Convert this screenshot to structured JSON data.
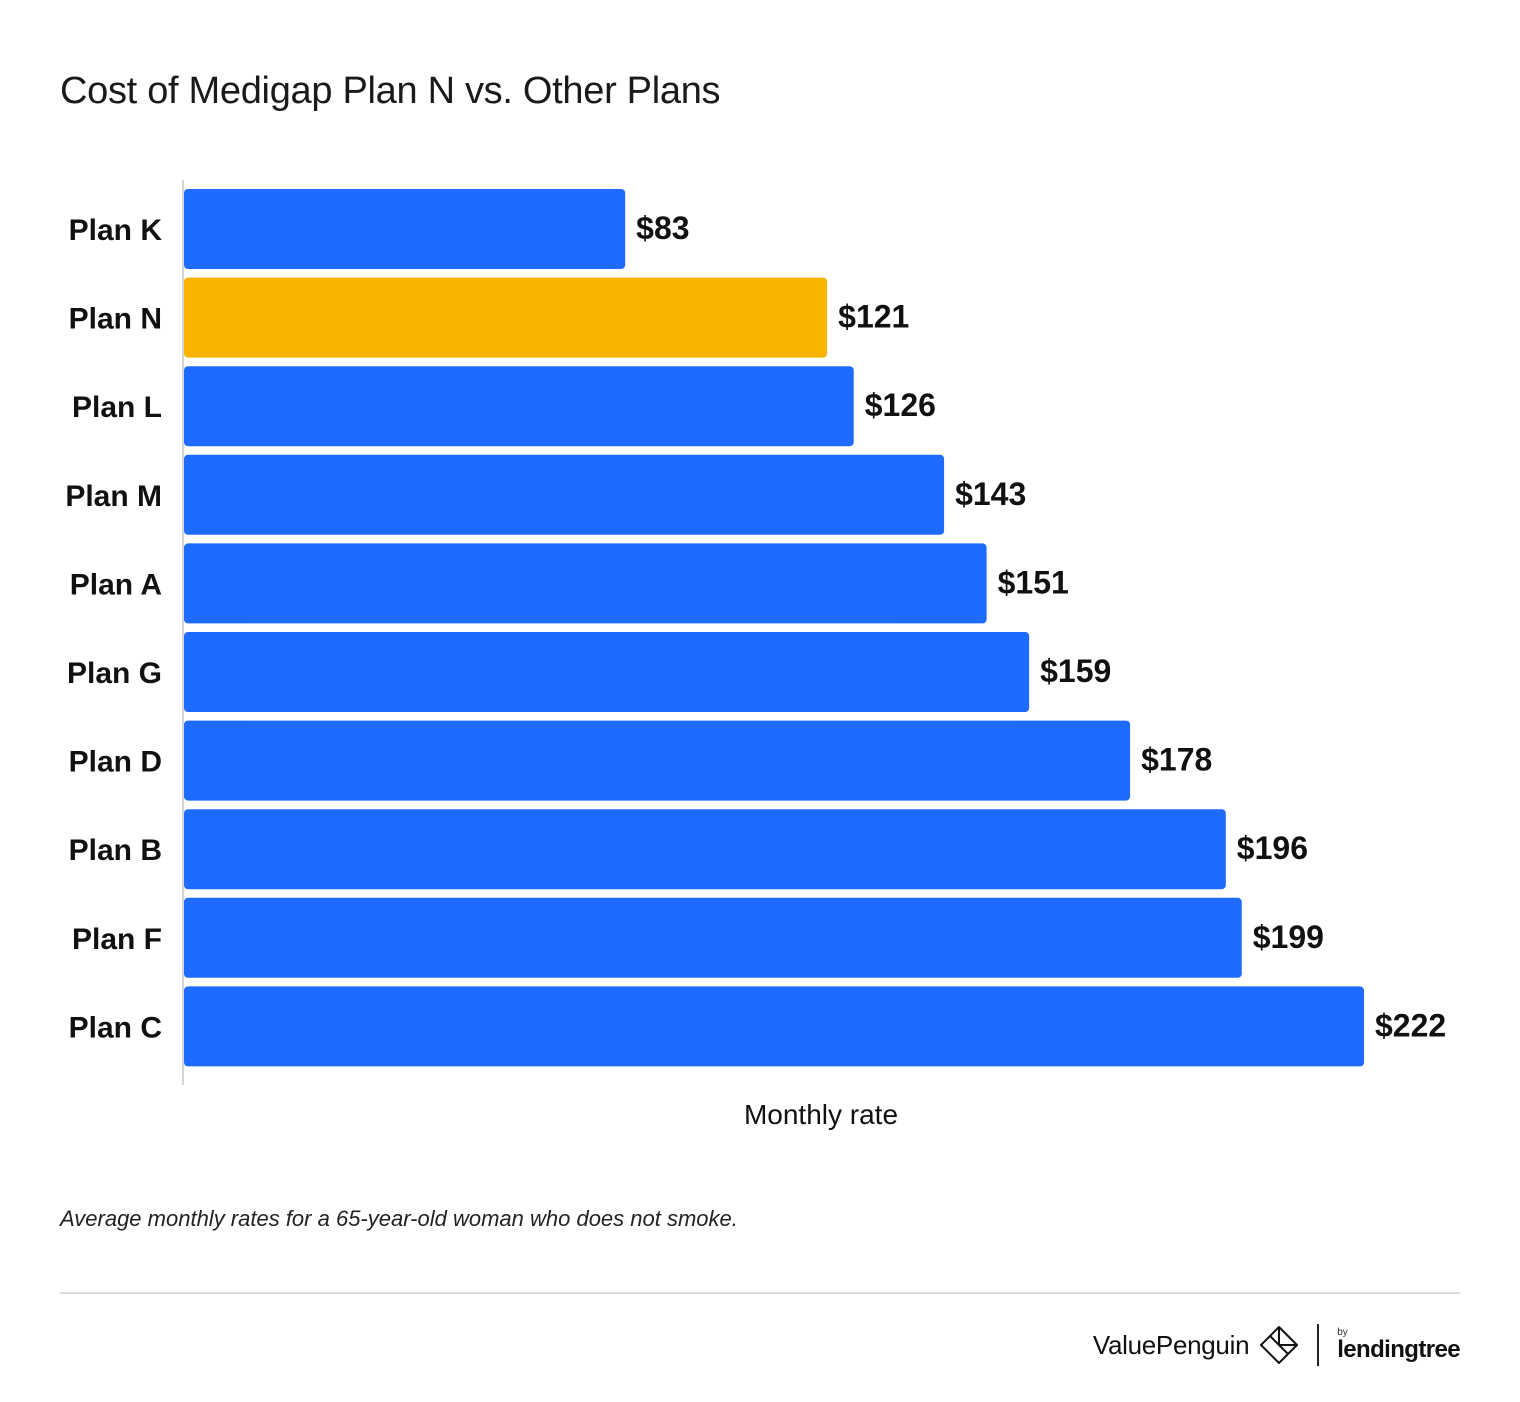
{
  "title": "Cost of Medigap Plan N vs. Other Plans",
  "footnote": "Average monthly rates for a 65-year-old woman who does not smoke.",
  "brand": {
    "valuepenguin": "ValuePenguin",
    "by": "by",
    "lendingtree": "lendingtree",
    "logo_icon": "valuepenguin-diamond-icon",
    "leaf_icon": "lendingtree-leaf-icon"
  },
  "colors": {
    "bar": "#1f6bff",
    "highlight": "#f9b400",
    "label": "#111111"
  },
  "chart_data": {
    "type": "bar",
    "orientation": "horizontal",
    "categories": [
      "Plan K",
      "Plan N",
      "Plan L",
      "Plan M",
      "Plan A",
      "Plan G",
      "Plan D",
      "Plan B",
      "Plan F",
      "Plan C"
    ],
    "values": [
      83,
      121,
      126,
      143,
      151,
      159,
      178,
      196,
      199,
      222
    ],
    "value_labels": [
      "$83",
      "$121",
      "$126",
      "$143",
      "$151",
      "$159",
      "$178",
      "$196",
      "$199",
      "$222"
    ],
    "highlight_category": "Plan N",
    "xlabel": "Monthly rate",
    "ylabel": "",
    "xlim": [
      0,
      222
    ],
    "grid": false
  }
}
